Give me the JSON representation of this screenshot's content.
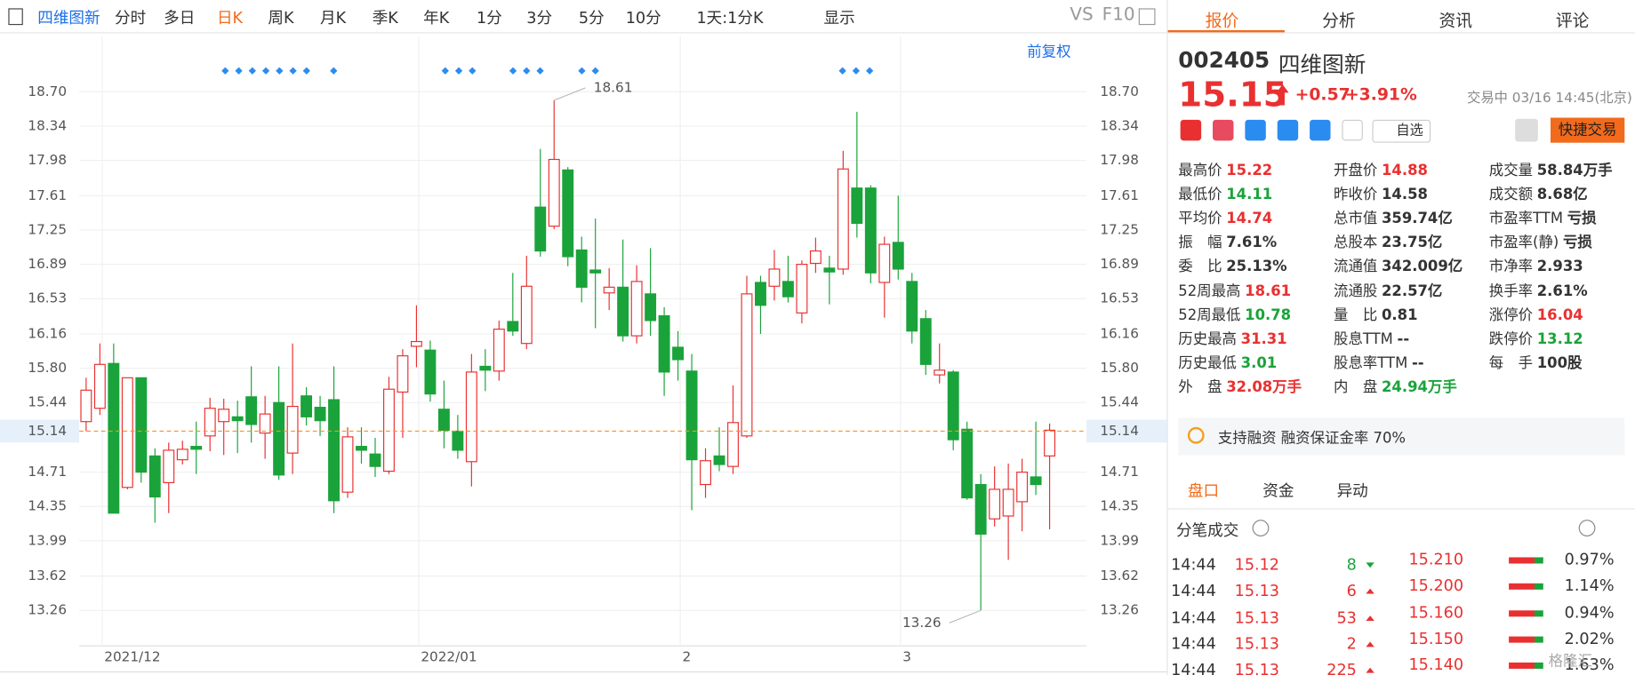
{
  "toolbar": {
    "stock": "四维图新",
    "periods": [
      "分时",
      "多日",
      "日K",
      "周K",
      "月K",
      "季K",
      "年K",
      "1分",
      "3分",
      "5分",
      "10分"
    ],
    "active": 2,
    "range": "1天:1分K",
    "display": "显示",
    "vs": "VS",
    "f10": "F10",
    "adjust": "前复权"
  },
  "chart_data": {
    "type": "candlestick",
    "up_color": "#e93030",
    "down_color": "#1aa33a",
    "grid": true,
    "categories": [
      null,
      null,
      "2021/12",
      null,
      null,
      null,
      null,
      null,
      null,
      null,
      null,
      null,
      null,
      null,
      null,
      null,
      null,
      null,
      null,
      null,
      null,
      null,
      null,
      null,
      null,
      "2022/01",
      null,
      null,
      null,
      null,
      null,
      null,
      null,
      null,
      null,
      null,
      null,
      null,
      null,
      null,
      null,
      null,
      null,
      null,
      "2",
      null,
      null,
      null,
      null,
      null,
      null,
      null,
      null,
      null,
      null,
      null,
      null,
      null,
      null,
      null,
      "3",
      null,
      null,
      null,
      null,
      null,
      null,
      null,
      null,
      null,
      null
    ],
    "open": [
      15.24,
      15.38,
      15.85,
      14.55,
      15.7,
      14.88,
      14.6,
      14.84,
      14.98,
      15.09,
      15.24,
      15.29,
      15.5,
      15.12,
      15.44,
      14.91,
      15.51,
      15.39,
      15.47,
      14.5,
      14.98,
      14.9,
      14.72,
      15.55,
      16.03,
      15.99,
      15.37,
      15.14,
      14.82,
      15.82,
      15.77,
      16.29,
      16.06,
      17.49,
      17.29,
      17.88,
      17.04,
      16.83,
      16.59,
      16.65,
      16.14,
      16.58,
      16.35,
      16.02,
      15.77,
      14.58,
      14.88,
      14.77,
      15.09,
      16.7,
      16.66,
      16.71,
      16.38,
      16.9,
      16.85,
      16.84,
      17.69,
      17.69,
      16.7,
      17.12,
      16.71,
      16.32,
      15.73,
      15.76,
      15.16,
      14.58,
      14.22,
      14.25,
      14.4,
      14.66,
      14.88
    ],
    "high": [
      15.7,
      16.06,
      16.06,
      15.7,
      15.7,
      14.96,
      15.02,
      15.04,
      15.24,
      15.49,
      15.48,
      15.46,
      15.82,
      15.51,
      15.82,
      16.06,
      15.6,
      15.51,
      15.82,
      15.18,
      15.18,
      15.07,
      15.71,
      16.0,
      16.46,
      16.09,
      15.67,
      15.31,
      15.95,
      16.0,
      16.3,
      16.8,
      16.98,
      18.1,
      18.61,
      17.91,
      17.18,
      17.37,
      16.85,
      17.15,
      16.88,
      17.06,
      16.44,
      16.19,
      15.95,
      14.96,
      15.18,
      15.62,
      16.77,
      16.77,
      17.04,
      16.98,
      16.93,
      17.17,
      16.98,
      18.08,
      18.49,
      17.72,
      17.18,
      17.61,
      16.8,
      16.41,
      16.06,
      15.78,
      15.24,
      14.69,
      14.77,
      14.8,
      14.85,
      15.24,
      15.22
    ],
    "low": [
      15.14,
      15.31,
      14.28,
      14.53,
      14.6,
      14.18,
      14.28,
      14.79,
      14.69,
      14.93,
      14.89,
      14.91,
      15.02,
      14.85,
      14.63,
      14.69,
      15.2,
      15.09,
      14.28,
      14.44,
      14.8,
      14.66,
      14.69,
      15.07,
      15.81,
      15.45,
      14.96,
      14.85,
      14.56,
      15.56,
      15.67,
      16.14,
      16.0,
      16.97,
      17.26,
      16.87,
      16.49,
      16.22,
      16.41,
      16.08,
      16.06,
      16.14,
      15.51,
      15.67,
      14.31,
      14.44,
      14.72,
      14.69,
      15.07,
      16.16,
      16.51,
      16.49,
      16.27,
      16.8,
      16.47,
      16.78,
      17.17,
      16.69,
      16.33,
      16.73,
      16.06,
      15.73,
      15.64,
      14.94,
      14.42,
      13.26,
      14.14,
      13.79,
      14.09,
      14.47,
      14.11
    ],
    "close": [
      15.57,
      15.84,
      14.28,
      15.7,
      14.71,
      14.45,
      14.94,
      14.95,
      14.95,
      15.38,
      15.37,
      15.25,
      15.21,
      15.32,
      14.68,
      15.4,
      15.29,
      15.25,
      14.41,
      15.08,
      14.94,
      14.77,
      15.58,
      15.93,
      16.08,
      15.53,
      15.15,
      14.94,
      15.76,
      15.78,
      16.21,
      16.19,
      16.66,
      17.03,
      17.99,
      16.97,
      16.65,
      16.8,
      16.65,
      16.14,
      16.71,
      16.3,
      15.76,
      15.89,
      14.84,
      14.83,
      14.79,
      15.23,
      16.58,
      16.46,
      16.84,
      16.55,
      16.89,
      17.03,
      16.81,
      17.89,
      17.32,
      16.8,
      17.1,
      16.84,
      16.19,
      15.84,
      15.78,
      15.05,
      14.44,
      14.06,
      14.53,
      14.53,
      14.71,
      14.58,
      15.15
    ],
    "ylim": [
      12.91,
      19.28
    ],
    "yticks": [
      13.26,
      13.62,
      13.99,
      14.35,
      14.71,
      15.44,
      {
        "value": 15.8,
        "label": "15.80"
      },
      16.16,
      16.53,
      16.89,
      17.25,
      17.61,
      17.98,
      18.34,
      {
        "value": 18.7,
        "label": "18.70"
      }
    ],
    "reference_line": {
      "value": 15.14,
      "color": "#f7941d"
    },
    "annotations": [
      18.61,
      13.26
    ]
  },
  "quote": {
    "tabs": [
      "报价",
      "分析",
      "资讯",
      "评论"
    ],
    "code": "002405",
    "name": "四维图新",
    "price": "15.15",
    "change": "+0.57",
    "change_pct": "+3.91%",
    "status": "交易中 03/16 14:45(北京)",
    "watch": "自选",
    "trade": "快捷交易",
    "stats": [
      [
        [
          "最高价",
          "15.22",
          "#e93030"
        ],
        [
          "最低价",
          "14.11",
          "#1aa33a"
        ],
        [
          "平均价",
          "14.74",
          "#e93030"
        ],
        [
          "振　幅",
          "7.61%",
          "#333333"
        ],
        [
          "委　比",
          "25.13%",
          "#333333"
        ],
        [
          "52周最高",
          "18.61",
          "#e93030"
        ],
        [
          "52周最低",
          "10.78",
          "#1aa33a"
        ],
        [
          "历史最高",
          "31.31",
          "#e93030"
        ],
        [
          "历史最低",
          "3.01",
          "#1aa33a"
        ],
        [
          "外　盘",
          "32.08万手",
          "#e93030"
        ]
      ],
      [
        [
          "开盘价",
          "14.88",
          "#e93030"
        ],
        [
          "昨收价",
          "14.58",
          "#333333"
        ],
        [
          "总市值",
          "359.74亿",
          "#333333"
        ],
        [
          "总股本",
          "23.75亿",
          "#333333"
        ],
        [
          "流通值",
          "342.009亿",
          "#333333"
        ],
        [
          "流通股",
          "22.57亿",
          "#333333"
        ],
        [
          "量　比",
          "0.81",
          "#333333"
        ],
        [
          "股息TTM",
          "--",
          "#333333"
        ],
        [
          "股息率TTM",
          "--",
          "#333333"
        ],
        [
          "内　盘",
          "24.94万手",
          "#1aa33a"
        ]
      ],
      [
        [
          "成交量",
          "58.84万手",
          "#333333"
        ],
        [
          "成交额",
          "8.68亿",
          "#333333"
        ],
        [
          "市盈率TTM",
          "亏损",
          "#333333"
        ],
        [
          "市盈率(静)",
          "亏损",
          "#333333"
        ],
        [
          "市净率",
          "2.933",
          "#333333"
        ],
        [
          "换手率",
          "2.61%",
          "#333333"
        ],
        [
          "涨停价",
          "16.04",
          "#e93030"
        ],
        [
          "跌停价",
          "13.12",
          "#1aa33a"
        ],
        [
          "每　手",
          "100股",
          "#333333"
        ]
      ]
    ],
    "financing": "支持融资 融资保证金率 70%"
  },
  "ticks_panel": {
    "tabs": [
      "盘口",
      "资金",
      "异动"
    ],
    "title": "分笔成交",
    "trades": [
      [
        "14:44",
        "15.12",
        "8",
        "#1aa33a"
      ],
      [
        "14:44",
        "15.13",
        "6",
        "#e93030"
      ],
      [
        "14:44",
        "15.13",
        "53",
        "#e93030"
      ],
      [
        "14:44",
        "15.13",
        "2",
        "#e93030"
      ],
      [
        "14:44",
        "15.13",
        "225",
        "#e93030"
      ]
    ],
    "levels": [
      [
        "15.210",
        "0.97%"
      ],
      [
        "15.200",
        "1.14%"
      ],
      [
        "15.160",
        "0.94%"
      ],
      [
        "15.150",
        "2.02%"
      ],
      [
        "15.140",
        "1.63%"
      ]
    ]
  },
  "watermark": "格隆汇"
}
